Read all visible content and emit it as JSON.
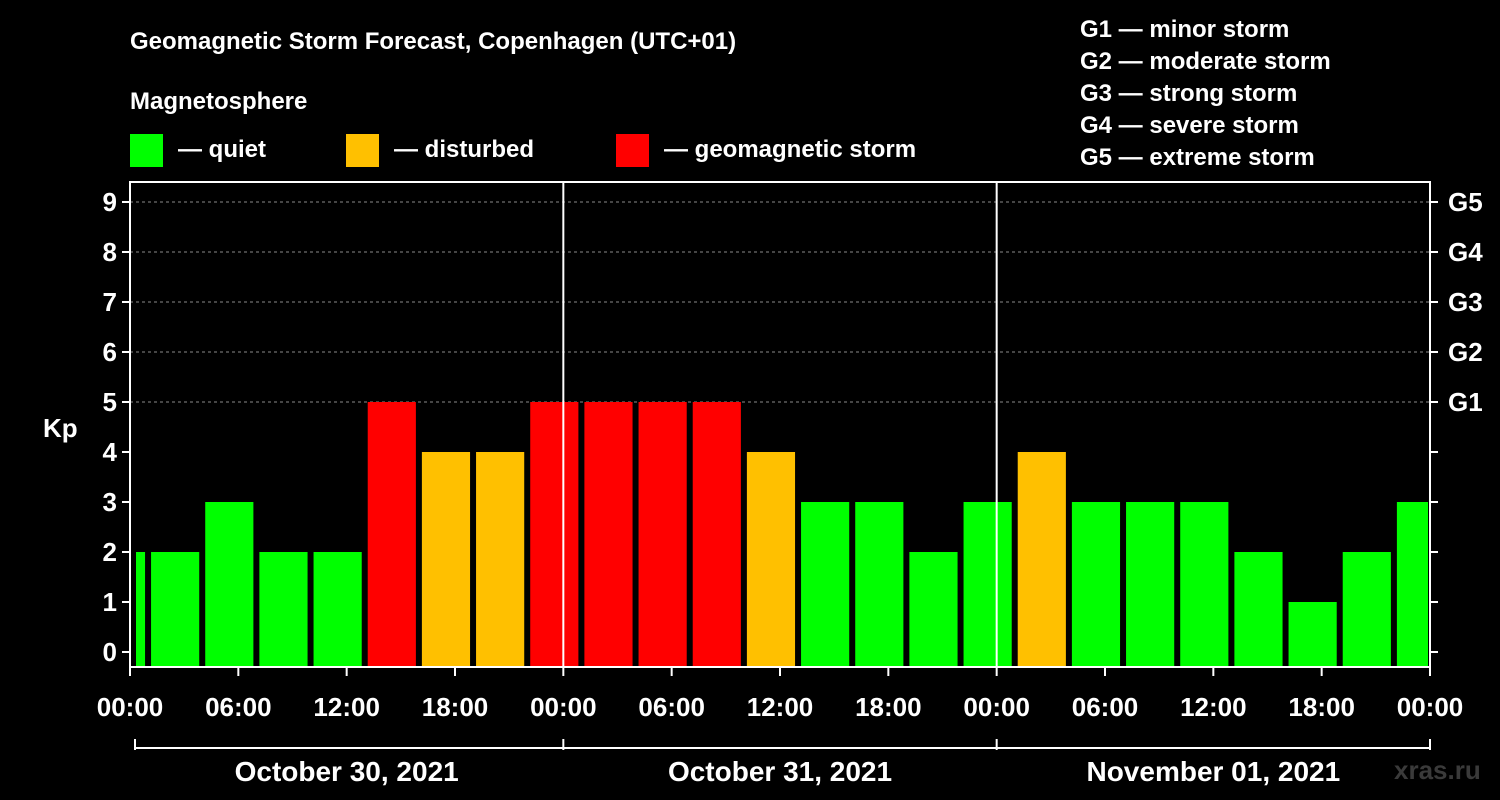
{
  "title": "Geomagnetic Storm Forecast, Copenhagen (UTC+01)",
  "legend": {
    "heading": "Magnetosphere",
    "items": [
      {
        "label": "— quiet",
        "color": "#00ff00"
      },
      {
        "label": "— disturbed",
        "color": "#ffc000"
      },
      {
        "label": "— geomagnetic storm",
        "color": "#ff0000"
      }
    ]
  },
  "storm_scale": [
    "G1 — minor storm",
    "G2 — moderate storm",
    "G3 — strong storm",
    "G4 — severe storm",
    "G5 — extreme storm"
  ],
  "watermark": "xras.ru",
  "chart_data": {
    "type": "bar",
    "title": "Geomagnetic Storm Forecast, Copenhagen (UTC+01)",
    "ylabel": "Kp",
    "ylim": [
      0,
      9
    ],
    "yticks": [
      "0",
      "1",
      "2",
      "3",
      "4",
      "5",
      "6",
      "7",
      "8",
      "9"
    ],
    "right_ticks": [
      {
        "kp": 5,
        "label": "G1"
      },
      {
        "kp": 6,
        "label": "G2"
      },
      {
        "kp": 7,
        "label": "G3"
      },
      {
        "kp": 8,
        "label": "G4"
      },
      {
        "kp": 9,
        "label": "G5"
      }
    ],
    "x_range_hours": [
      0,
      72
    ],
    "x_ticks": [
      "00:00",
      "06:00",
      "12:00",
      "18:00",
      "00:00",
      "06:00",
      "12:00",
      "18:00",
      "00:00",
      "06:00",
      "12:00",
      "18:00",
      "00:00"
    ],
    "days": [
      "October 30, 2021",
      "October 31, 2021",
      "November 01, 2021"
    ],
    "bars": [
      {
        "start": 0,
        "end": 1,
        "kp": 2
      },
      {
        "start": 1,
        "end": 4,
        "kp": 2
      },
      {
        "start": 4,
        "end": 7,
        "kp": 3
      },
      {
        "start": 7,
        "end": 10,
        "kp": 2
      },
      {
        "start": 10,
        "end": 13,
        "kp": 2
      },
      {
        "start": 13,
        "end": 16,
        "kp": 5
      },
      {
        "start": 16,
        "end": 19,
        "kp": 4
      },
      {
        "start": 19,
        "end": 22,
        "kp": 4
      },
      {
        "start": 22,
        "end": 25,
        "kp": 5
      },
      {
        "start": 25,
        "end": 28,
        "kp": 5
      },
      {
        "start": 28,
        "end": 31,
        "kp": 5
      },
      {
        "start": 31,
        "end": 34,
        "kp": 5
      },
      {
        "start": 34,
        "end": 37,
        "kp": 4
      },
      {
        "start": 37,
        "end": 40,
        "kp": 3
      },
      {
        "start": 40,
        "end": 43,
        "kp": 3
      },
      {
        "start": 43,
        "end": 46,
        "kp": 2
      },
      {
        "start": 46,
        "end": 49,
        "kp": 3
      },
      {
        "start": 49,
        "end": 52,
        "kp": 4
      },
      {
        "start": 52,
        "end": 55,
        "kp": 3
      },
      {
        "start": 55,
        "end": 58,
        "kp": 3
      },
      {
        "start": 58,
        "end": 61,
        "kp": 3
      },
      {
        "start": 61,
        "end": 64,
        "kp": 2
      },
      {
        "start": 64,
        "end": 67,
        "kp": 1
      },
      {
        "start": 67,
        "end": 70,
        "kp": 2
      },
      {
        "start": 70,
        "end": 72,
        "kp": 3
      }
    ]
  }
}
